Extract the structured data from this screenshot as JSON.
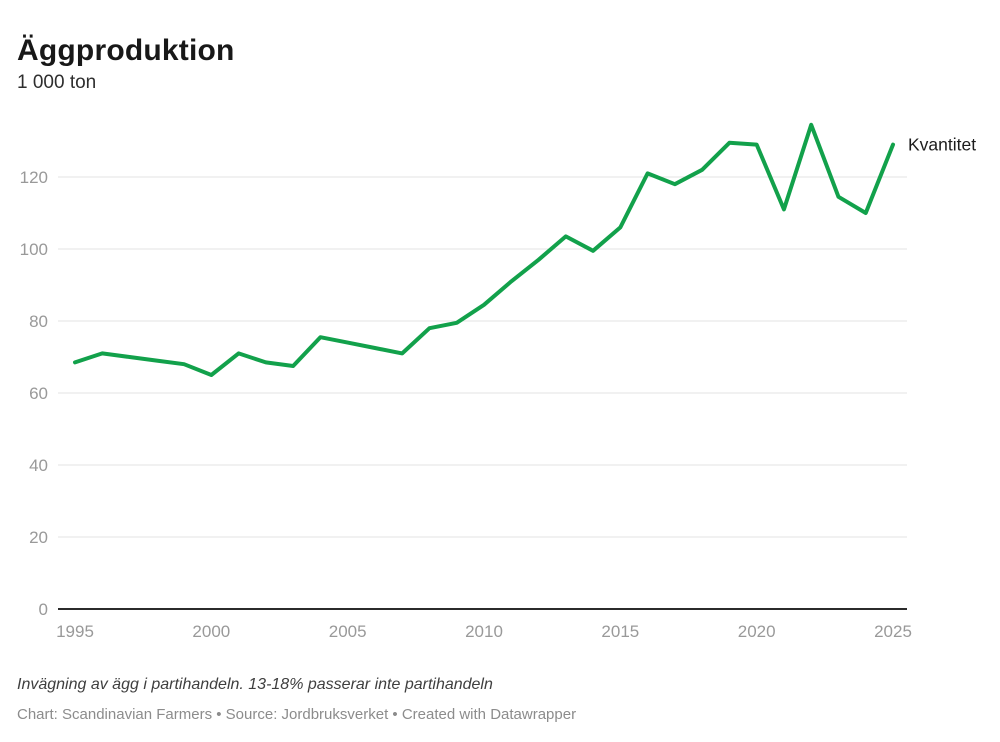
{
  "header": {
    "title": "Äggproduktion",
    "subtitle": "1 000 ton"
  },
  "chart_data": {
    "type": "line",
    "title": "Äggproduktion",
    "ylabel": "1 000 ton",
    "xlabel": "",
    "x": [
      1995,
      1996,
      1997,
      1998,
      1999,
      2000,
      2001,
      2002,
      2003,
      2004,
      2005,
      2006,
      2007,
      2008,
      2009,
      2010,
      2011,
      2012,
      2013,
      2014,
      2015,
      2016,
      2017,
      2018,
      2019,
      2020,
      2021,
      2022,
      2023,
      2024,
      2025
    ],
    "series": [
      {
        "name": "Kvantitet",
        "color": "#12a14b",
        "values": [
          68.5,
          71,
          70,
          69,
          68,
          65,
          71,
          68.5,
          67.5,
          75.5,
          74,
          72.5,
          71,
          78,
          79.5,
          84.5,
          91,
          97,
          103.5,
          99.5,
          106,
          121,
          118,
          122,
          129.5,
          129,
          111,
          134.5,
          114.5,
          110,
          129
        ]
      }
    ],
    "x_ticks": [
      1995,
      2000,
      2005,
      2010,
      2015,
      2020,
      2025
    ],
    "y_ticks": [
      0,
      20,
      40,
      60,
      80,
      100,
      120
    ],
    "xlim": [
      1995,
      2025
    ],
    "ylim": [
      0,
      138
    ],
    "grid": "horizontal",
    "legend_position": "right-of-last-point"
  },
  "footer": {
    "note": "Invägning av ägg i partihandeln. 13-18% passerar inte partihandeln",
    "byline": "Chart: Scandinavian Farmers • Source: Jordbruksverket • Created with Datawrapper"
  }
}
